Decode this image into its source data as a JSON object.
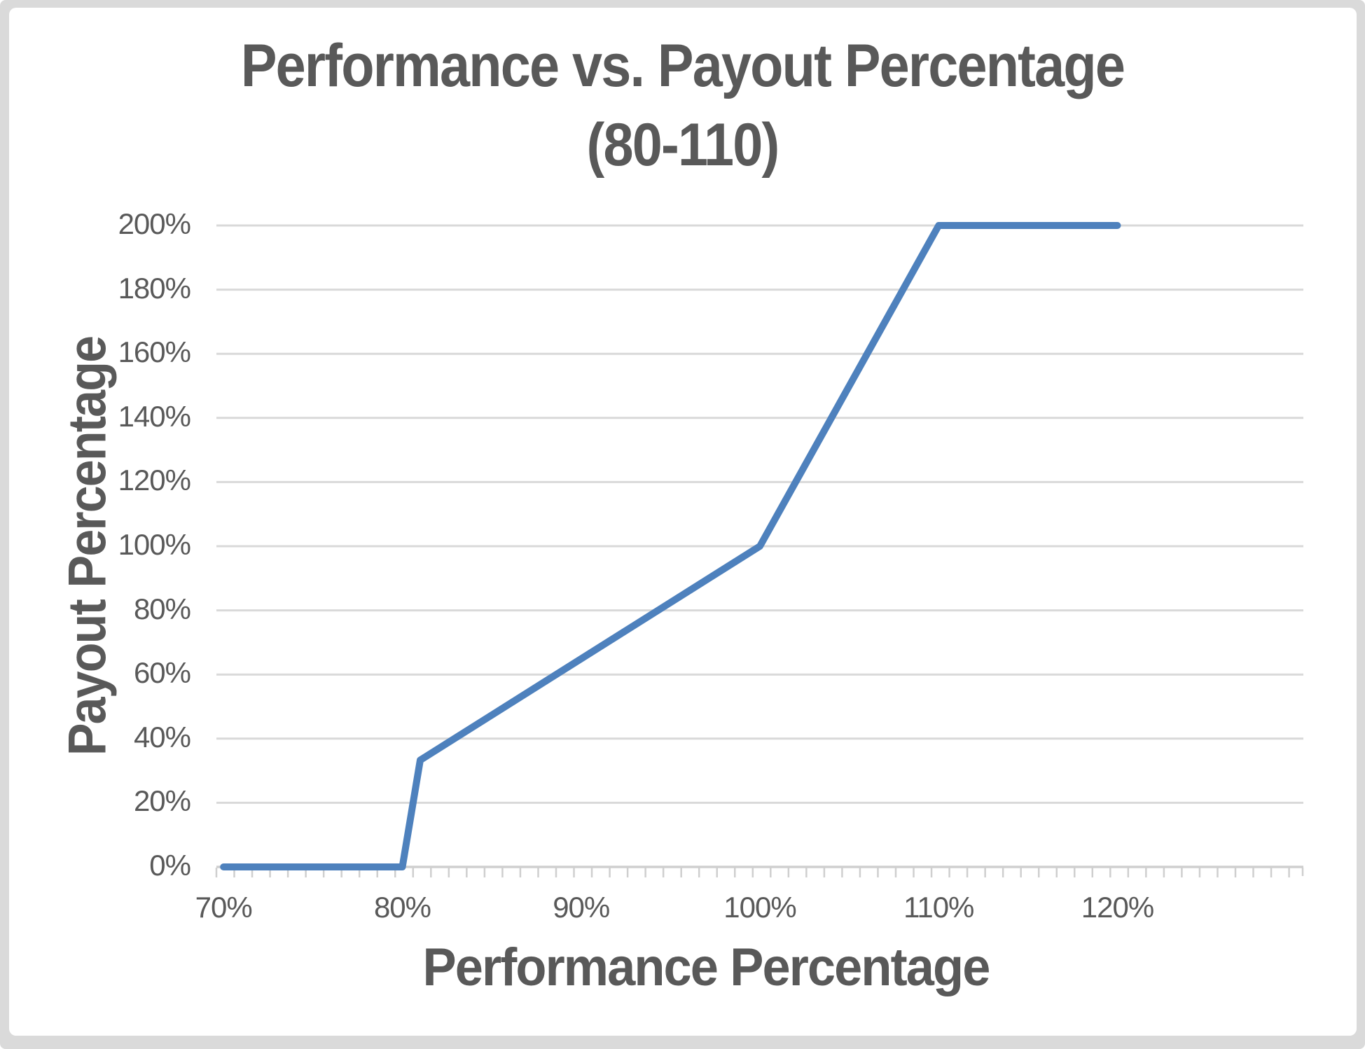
{
  "frame": {
    "border_color": "#DADADA",
    "background": "#FFFFFF"
  },
  "chart_data": {
    "type": "line",
    "title": "Performance vs. Payout Percentage",
    "subtitle": "(80-110)",
    "xlabel": "Performance Percentage",
    "ylabel": "Payout Percentage",
    "x_tick_values": [
      70,
      80,
      90,
      100,
      110,
      120
    ],
    "x_tick_labels": [
      "70%",
      "80%",
      "90%",
      "100%",
      "110%",
      "120%"
    ],
    "y_tick_values": [
      0,
      20,
      40,
      60,
      80,
      100,
      120,
      140,
      160,
      180,
      200
    ],
    "y_tick_labels": [
      "0%",
      "20%",
      "40%",
      "60%",
      "80%",
      "100%",
      "120%",
      "140%",
      "160%",
      "180%",
      "200%"
    ],
    "x_axis_range": [
      69.6,
      130.4
    ],
    "ylim": [
      0,
      200
    ],
    "minor_x_tick_step": 1,
    "grid": "horizontal",
    "legend": "none",
    "series": [
      {
        "name": "Payout Percentage",
        "color": "#4E81BD",
        "line_width": 10,
        "points": [
          [
            70,
            0
          ],
          [
            80,
            0
          ],
          [
            81,
            33.3
          ],
          [
            100,
            100
          ],
          [
            110,
            200
          ],
          [
            120,
            200
          ]
        ]
      }
    ],
    "colors": {
      "line": "#4E81BD",
      "gridline": "#D9D9D9",
      "axis": "#CFCFCF",
      "text": "#595959"
    }
  }
}
